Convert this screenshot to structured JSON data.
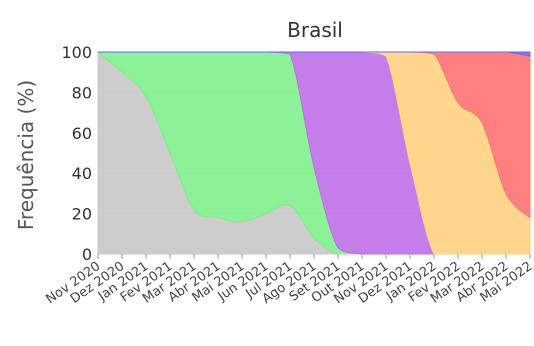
{
  "chart_data": {
    "type": "area",
    "title": "Brasil",
    "xlabel": "",
    "ylabel": "Frequência (%)",
    "ylim": [
      0,
      100
    ],
    "yticks": [
      "0",
      "20",
      "40",
      "60",
      "80",
      "100"
    ],
    "categories": [
      "Nov 2020",
      "Dez 2020",
      "Jan 2021",
      "Fev 2021",
      "Mar 2021",
      "Abr 2021",
      "Mai 2021",
      "Jun 2021",
      "Jul 2021",
      "Ago 2021",
      "Set 2021",
      "Out 2021",
      "Nov 2021",
      "Dez 2021",
      "Jan 2022",
      "Fev 2022",
      "Mar 2022",
      "Abr 2022",
      "Mai 2022"
    ],
    "grid": true,
    "series": [
      {
        "color": "#c8c8c8",
        "values": [
          100,
          90,
          78,
          50,
          22,
          18,
          16,
          20,
          24,
          8,
          0,
          0,
          0,
          0,
          0,
          0,
          0,
          0,
          0
        ]
      },
      {
        "color": "#7fef8c",
        "values": [
          0,
          10,
          22,
          50,
          78,
          82,
          84,
          80,
          75,
          35,
          3,
          0,
          0,
          0,
          0,
          0,
          0,
          0,
          0
        ]
      },
      {
        "color": "#bf6fe8",
        "values": [
          0,
          0,
          0,
          0,
          0,
          0,
          0,
          0,
          1,
          57,
          97,
          100,
          98,
          45,
          0,
          0,
          0,
          0,
          0
        ]
      },
      {
        "color": "#ffd27f",
        "values": [
          0,
          0,
          0,
          0,
          0,
          0,
          0,
          0,
          0,
          0,
          0,
          0,
          2,
          55,
          99,
          75,
          65,
          30,
          18
        ]
      },
      {
        "color": "#ff7272",
        "values": [
          0,
          0,
          0,
          0,
          0,
          0,
          0,
          0,
          0,
          0,
          0,
          0,
          0,
          0,
          1,
          25,
          35,
          70,
          80
        ]
      },
      {
        "color": "#6a6ae8",
        "values": [
          0,
          0,
          0,
          0,
          0,
          0,
          0,
          0,
          0,
          0,
          0,
          0,
          0,
          0,
          0,
          0,
          0,
          0,
          2
        ]
      }
    ]
  }
}
